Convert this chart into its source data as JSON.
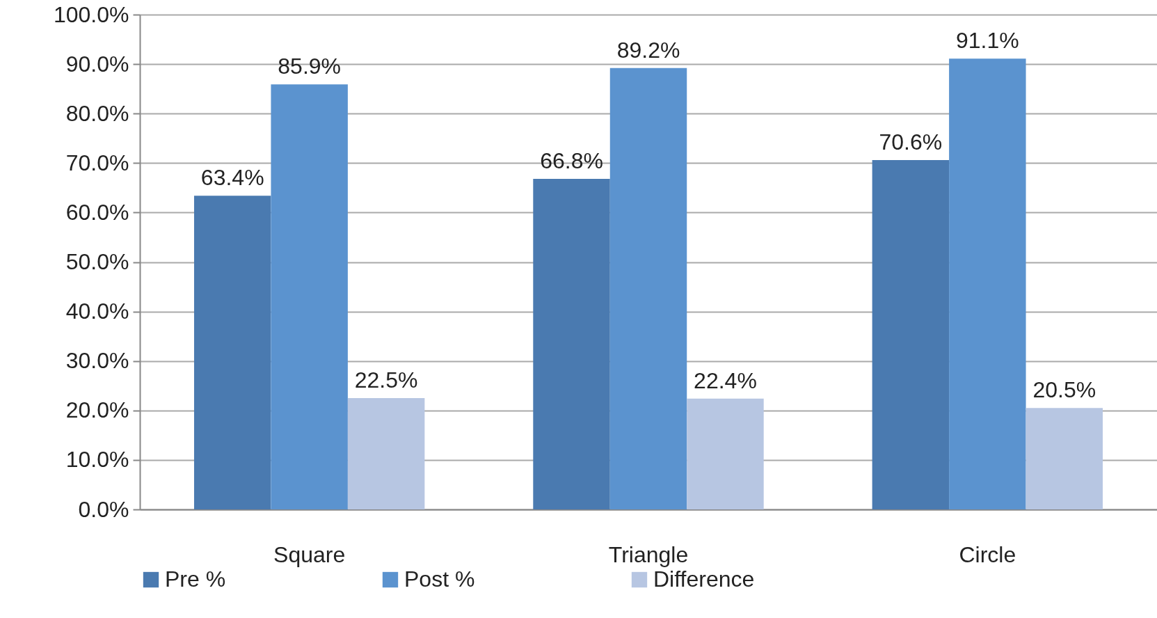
{
  "chart_data": {
    "type": "bar",
    "categories": [
      "Square",
      "Triangle",
      "Circle"
    ],
    "series": [
      {
        "name": "Pre %",
        "color": "#4a7ab0",
        "values": [
          63.4,
          66.8,
          70.6
        ],
        "value_labels": [
          "63.4%",
          "66.8%",
          "70.6%"
        ]
      },
      {
        "name": "Post %",
        "color": "#5b93cf",
        "values": [
          85.9,
          89.2,
          91.1
        ],
        "value_labels": [
          "85.9%",
          "89.2%",
          "91.1%"
        ]
      },
      {
        "name": "Difference",
        "color": "#b7c6e2",
        "values": [
          22.5,
          22.4,
          20.5
        ],
        "value_labels": [
          "22.5%",
          "22.4%",
          "20.5%"
        ]
      }
    ],
    "ylim": [
      0,
      100
    ],
    "yticks": [
      {
        "value": 0,
        "label": "0.0%"
      },
      {
        "value": 10,
        "label": "10.0%"
      },
      {
        "value": 20,
        "label": "20.0%"
      },
      {
        "value": 30,
        "label": "30.0%"
      },
      {
        "value": 40,
        "label": "40.0%"
      },
      {
        "value": 50,
        "label": "50.0%"
      },
      {
        "value": 60,
        "label": "60.0%"
      },
      {
        "value": 70,
        "label": "70.0%"
      },
      {
        "value": 80,
        "label": "80.0%"
      },
      {
        "value": 90,
        "label": "90.0%"
      },
      {
        "value": 100,
        "label": "100.0%"
      }
    ],
    "grid": "y",
    "legend": "bottom"
  }
}
